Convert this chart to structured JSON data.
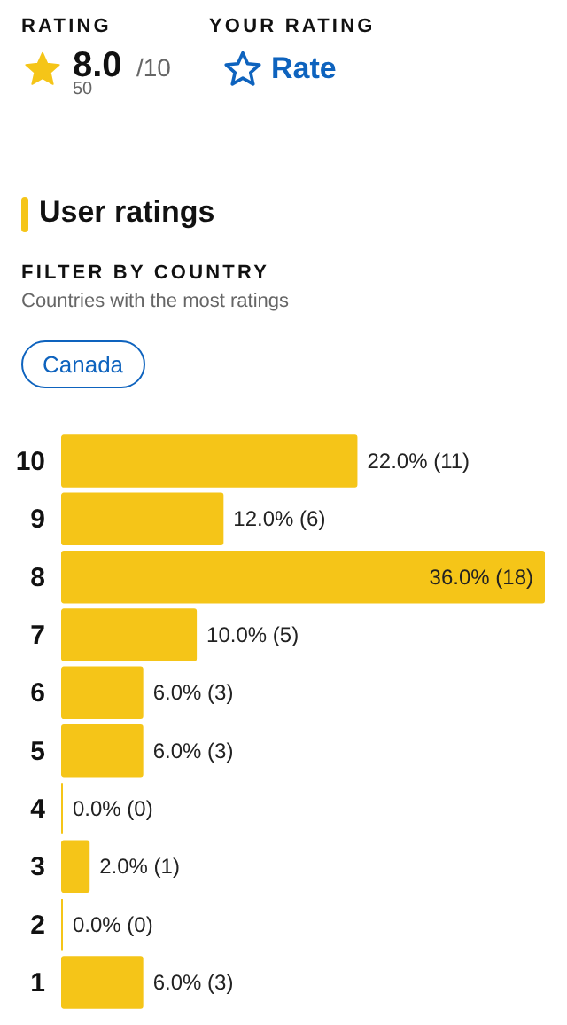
{
  "chart_data": {
    "type": "bar",
    "orientation": "horizontal",
    "title": "User ratings",
    "annotations": [
      "RATING",
      "8.0",
      "/10",
      "50",
      "YOUR RATING",
      "Rate",
      "FILTER BY COUNTRY",
      "Countries with the most ratings",
      "Canada"
    ],
    "categories": [
      "10",
      "9",
      "8",
      "7",
      "6",
      "5",
      "4",
      "3",
      "2",
      "1"
    ],
    "values": [
      22,
      12,
      36,
      10,
      6,
      6,
      0,
      2,
      0,
      6
    ],
    "value_labels": [
      "22.0% (11)",
      "12.0% (6)",
      "36.0% (18)",
      "10.0% (5)",
      "6.0% (3)",
      "6.0% (3)",
      "0.0% (0)",
      "2.0% (1)",
      "0.0% (0)",
      "6.0% (3)"
    ],
    "color": "#f5c518",
    "tick_labels": "y",
    "grid": false
  }
}
